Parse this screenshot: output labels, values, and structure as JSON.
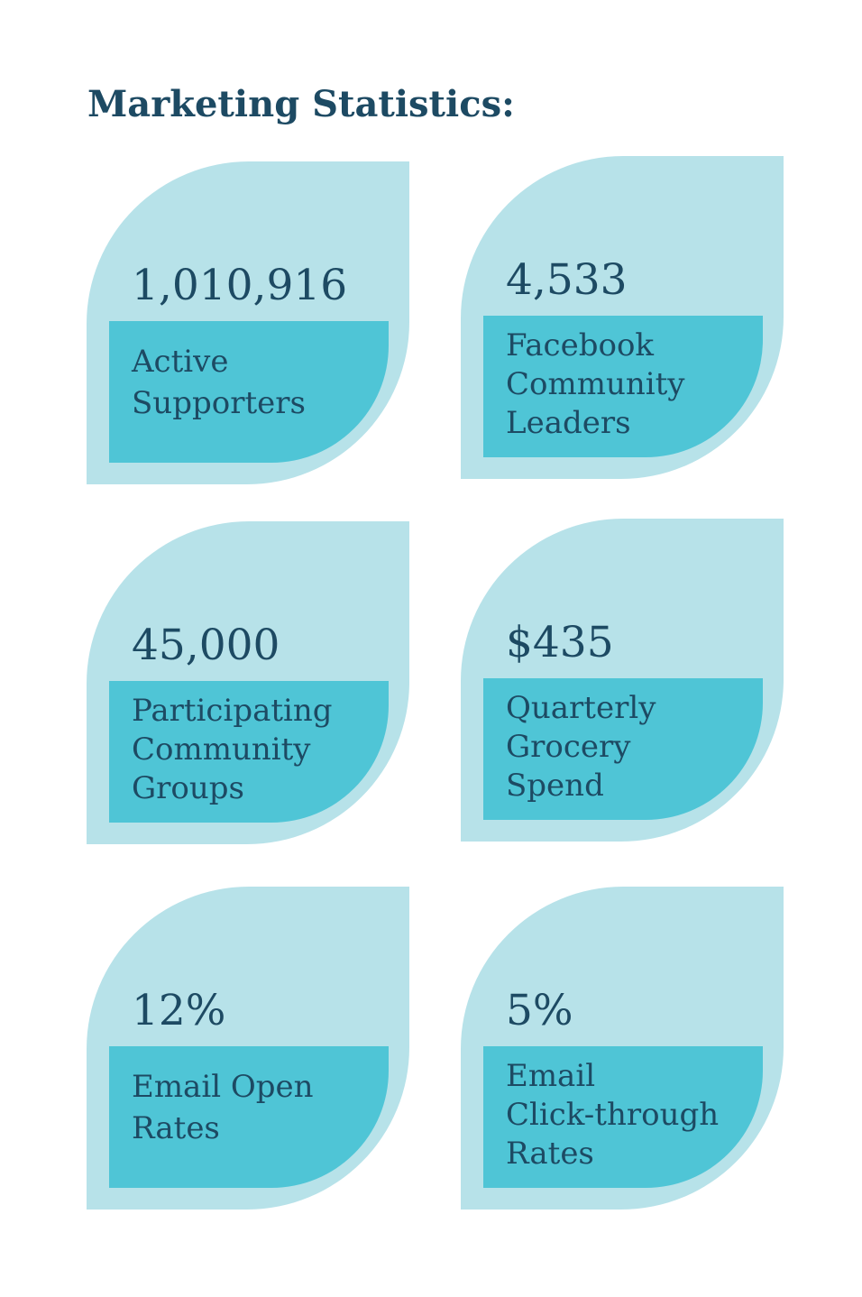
{
  "title": "Marketing Statistics:",
  "colors": {
    "title": "#1d4a63",
    "card_background": "#b7e2e9",
    "label_background": "#4fc5d6",
    "text": "#1d4a63"
  },
  "stats": [
    {
      "value": "1,010,916",
      "label_lines": [
        "Active",
        "Supporters"
      ]
    },
    {
      "value": "4,533",
      "label_lines": [
        "Facebook",
        "Community",
        "Leaders"
      ]
    },
    {
      "value": "45,000",
      "label_lines": [
        "Participating",
        "Community",
        "Groups"
      ]
    },
    {
      "value": "$435",
      "label_lines": [
        "Quarterly",
        "Grocery",
        "Spend"
      ]
    },
    {
      "value": "12%",
      "label_lines": [
        "Email Open",
        "Rates"
      ]
    },
    {
      "value": "5%",
      "label_lines": [
        "Email",
        "Click-through",
        "Rates"
      ]
    }
  ]
}
